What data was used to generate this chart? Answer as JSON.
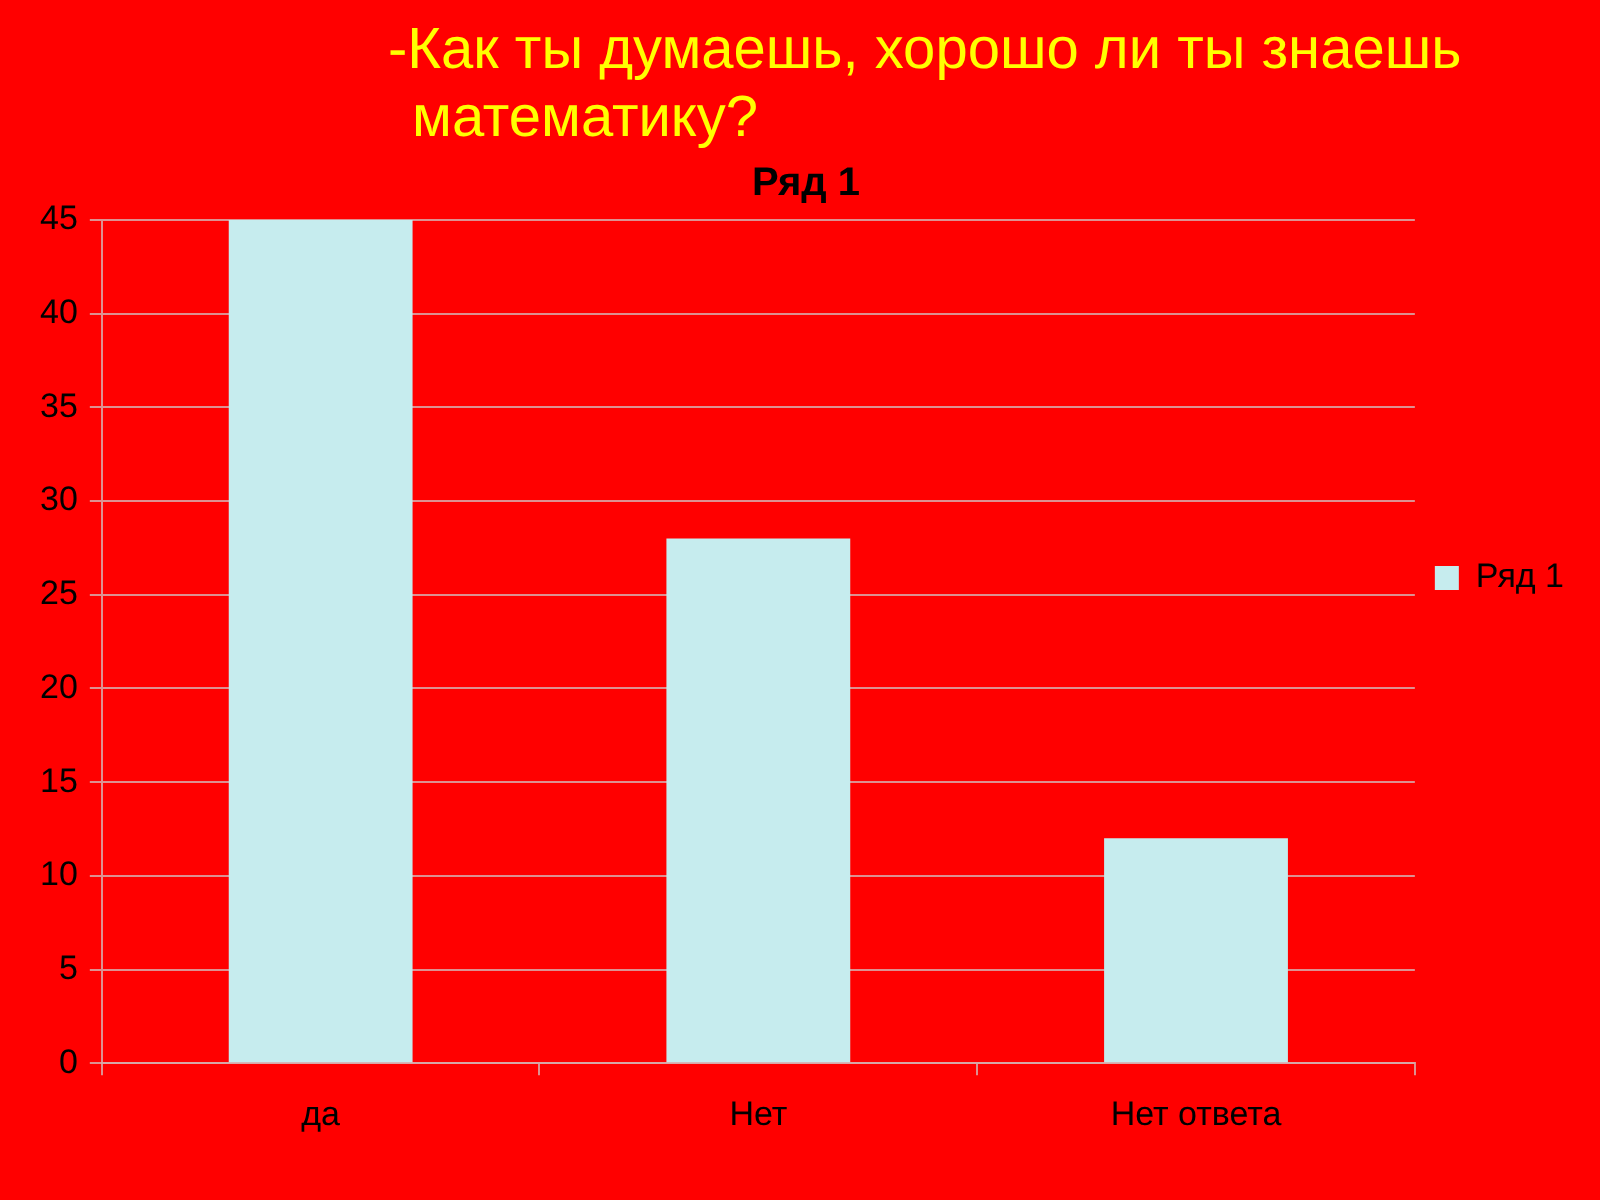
{
  "chart_data": {
    "type": "bar",
    "title": "-Как ты думаешь, хорошо ли ты знаешь математику?",
    "subtitle": "Ряд 1",
    "categories": [
      "да",
      "Нет",
      "Нет ответа"
    ],
    "series": [
      {
        "name": "Ряд 1",
        "color": "#c6ecee",
        "values": [
          45,
          28,
          12
        ]
      }
    ],
    "ylim": [
      0,
      45
    ],
    "yticks": [
      0,
      5,
      10,
      15,
      20,
      25,
      30,
      35,
      40,
      45
    ],
    "grid": "y",
    "legend": "right"
  }
}
